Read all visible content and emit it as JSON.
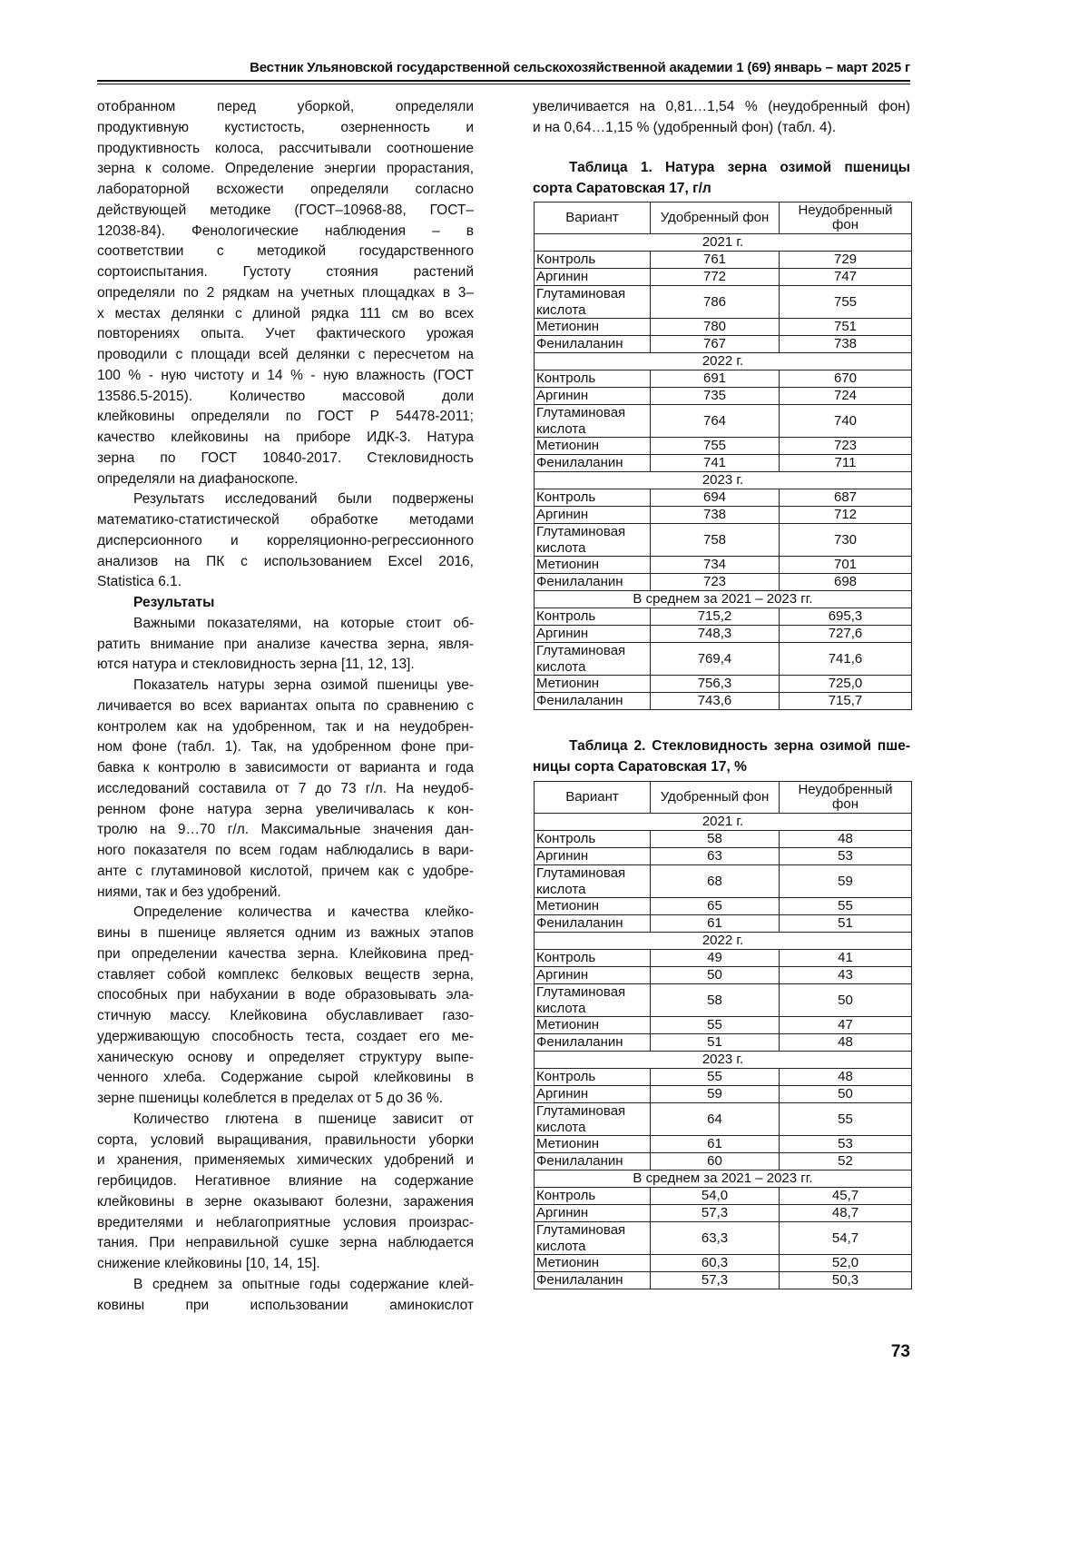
{
  "header": {
    "journal": "Вестник Ульяновской государственной сельскохозяйственной академии 1 (69) январь – март 2025 г"
  },
  "left_column": [
    {
      "indent": false,
      "bold": false,
      "continues": false,
      "lines": [
        "отобранном перед уборкой, определяли",
        "продуктивную кустистость, озерненность и",
        "продуктивность колоса, рассчитывали соотношение",
        "зерна к соломе. Определение энергии прорастания,",
        "лабораторной всхожести определяли согласно",
        "действующей методике (ГОСТ–10968-88, ГОСТ–",
        "12038-84). Фенологические наблюдения – в",
        "соответствии с методикой государственного",
        "сортоиспытания. Густоту стояния растений",
        "определяли по 2 рядкам на учетных площадках в 3–",
        "х местах делянки с длиной рядка 111 см во всех",
        "повторениях опыта. Учет фактического урожая",
        "проводили с площади всей делянки с пересчетом на",
        "100 % - ную чистоту и 14 % - ную влажность (ГОСТ",
        "13586.5-2015). Количество массовой доли",
        "клейковины определяли по ГОСТ Р 54478-2011;",
        "качество клейковины на приборе ИДК-3. Натура",
        "зерна по ГОСТ 10840-2017. Стекловидность",
        "определяли на диафаноскопе."
      ]
    },
    {
      "indent": true,
      "bold": false,
      "continues": false,
      "lines": [
        "Результатs исследований были подвержены",
        "математико-статистической обработке методами",
        "дисперсионного и корреляционно-регрессионного",
        "анализов на ПК с использованием Excel 2016,",
        "Statistica 6.1."
      ]
    },
    {
      "indent": true,
      "bold": true,
      "continues": false,
      "lines": [
        "Результаты"
      ]
    },
    {
      "indent": true,
      "bold": false,
      "continues": false,
      "lines": [
        "Важными показателями, на которые стоит об-",
        "ратить внимание при анализе качества зерна, явля-",
        "ются натура и стекловидность зерна [11, 12, 13]."
      ]
    },
    {
      "indent": true,
      "bold": false,
      "continues": false,
      "lines": [
        "Показатель натуры зерна озимой пшеницы уве-",
        "личивается во всех вариантах опыта по сравнению с",
        "контролем как на удобренном, так и на неудобрен-",
        "ном фоне (табл. 1). Так, на удобренном фоне при-",
        "бавка к контролю в зависимости от варианта и года",
        "исследований составила от 7 до 73 г/л. На неудоб-",
        "ренном фоне натура зерна увеличивалась к кон-",
        "тролю на 9…70 г/л. Максимальные значения дан-",
        "ного показателя по всем годам наблюдались в вари-",
        "анте с глутаминовой кислотой, причем как с удобре-",
        "ниями, так и без удобрений."
      ]
    },
    {
      "indent": true,
      "bold": false,
      "continues": false,
      "lines": [
        "Определение количества и качества клейко-",
        "вины в пшенице является одним из важных этапов",
        "при определении качества зерна. Клейковина пред-",
        "ставляет собой комплекс белковых веществ зерна,",
        "способных при набухании в воде образовывать эла-",
        "стичную массу. Клейковина обуславливает газо-",
        "удерживающую способность теста, создает его ме-",
        "ханическую основу и определяет структуру выпе-",
        "ченного хлеба. Содержание сырой клейковины в",
        "зерне пшеницы колеблется в пределах от 5 до 36 %."
      ]
    },
    {
      "indent": true,
      "bold": false,
      "continues": false,
      "lines": [
        "Количество глютена в пшенице зависит от",
        "сорта, условий выращивания, правильности уборки",
        "и хранения, применяемых химических удобрений и",
        "гербицидов. Негативное влияние на содержание",
        "клейковины в зерне оказывают болезни, заражения",
        "вредителями и неблагоприятные условия произрас-",
        "тания. При неправильной сушке зерна наблюдается",
        "снижение клейковины [10, 14, 15]."
      ]
    },
    {
      "indent": true,
      "bold": false,
      "continues": true,
      "lines": [
        "В среднем за опытные годы содержание клей-",
        "ковины при использовании аминокислот"
      ]
    }
  ],
  "right_intro": {
    "lines": [
      "увеличивается на 0,81…1,54 % (неудобренный фон)",
      "и на 0,64…1,15 % (удобренный фон) (табл. 4)."
    ]
  },
  "tables": [
    {
      "title_lines": [
        "Таблица 1. Натура зерна озимой пшеницы",
        "сорта Саратовская 17, г/л"
      ],
      "headers": [
        "Вариант",
        "Удобренный фон",
        "Неудобренный фон"
      ],
      "sections": [
        {
          "label": "2021 г.",
          "rows": [
            [
              "Контроль",
              "761",
              "729"
            ],
            [
              "Аргинин",
              "772",
              "747"
            ],
            [
              "Глутаминовая кислота",
              "786",
              "755"
            ],
            [
              "Метионин",
              "780",
              "751"
            ],
            [
              "Фенилаланин",
              "767",
              "738"
            ]
          ]
        },
        {
          "label": "2022 г.",
          "rows": [
            [
              "Контроль",
              "691",
              "670"
            ],
            [
              "Аргинин",
              "735",
              "724"
            ],
            [
              "Глутаминовая кислота",
              "764",
              "740"
            ],
            [
              "Метионин",
              "755",
              "723"
            ],
            [
              "Фенилаланин",
              "741",
              "711"
            ]
          ]
        },
        {
          "label": "2023 г.",
          "rows": [
            [
              "Контроль",
              "694",
              "687"
            ],
            [
              "Аргинин",
              "738",
              "712"
            ],
            [
              "Глутаминовая кислота",
              "758",
              "730"
            ],
            [
              "Метионин",
              "734",
              "701"
            ],
            [
              "Фенилаланин",
              "723",
              "698"
            ]
          ]
        },
        {
          "label": "В среднем за 2021 – 2023 гг.",
          "rows": [
            [
              "Контроль",
              "715,2",
              "695,3"
            ],
            [
              "Аргинин",
              "748,3",
              "727,6"
            ],
            [
              "Глутаминовая кислота",
              "769,4",
              "741,6"
            ],
            [
              "Метионин",
              "756,3",
              "725,0"
            ],
            [
              "Фенилаланин",
              "743,6",
              "715,7"
            ]
          ]
        }
      ]
    },
    {
      "title_lines": [
        "Таблица 2. Стекловидность зерна озимой пше-",
        "ницы сорта Саратовская 17, %"
      ],
      "headers": [
        "Вариант",
        "Удобренный фон",
        "Неудобренный фон"
      ],
      "sections": [
        {
          "label": "2021 г.",
          "rows": [
            [
              "Контроль",
              "58",
              "48"
            ],
            [
              "Аргинин",
              "63",
              "53"
            ],
            [
              "Глутаминовая кислота",
              "68",
              "59"
            ],
            [
              "Метионин",
              "65",
              "55"
            ],
            [
              "Фенилаланин",
              "61",
              "51"
            ]
          ]
        },
        {
          "label": "2022 г.",
          "rows": [
            [
              "Контроль",
              "49",
              "41"
            ],
            [
              "Аргинин",
              "50",
              "43"
            ],
            [
              "Глутаминовая кислота",
              "58",
              "50"
            ],
            [
              "Метионин",
              "55",
              "47"
            ],
            [
              "Фенилаланин",
              "51",
              "48"
            ]
          ]
        },
        {
          "label": "2023 г.",
          "rows": [
            [
              "Контроль",
              "55",
              "48"
            ],
            [
              "Аргинин",
              "59",
              "50"
            ],
            [
              "Глутаминовая кислота",
              "64",
              "55"
            ],
            [
              "Метионин",
              "61",
              "53"
            ],
            [
              "Фенилаланин",
              "60",
              "52"
            ]
          ]
        },
        {
          "label": "В среднем за 2021 – 2023 гг.",
          "rows": [
            [
              "Контроль",
              "54,0",
              "45,7"
            ],
            [
              "Аргинин",
              "57,3",
              "48,7"
            ],
            [
              "Глутаминовая кислота",
              "63,3",
              "54,7"
            ],
            [
              "Метионин",
              "60,3",
              "52,0"
            ],
            [
              "Фенилаланин",
              "57,3",
              "50,3"
            ]
          ]
        }
      ]
    }
  ],
  "page_number": "73"
}
